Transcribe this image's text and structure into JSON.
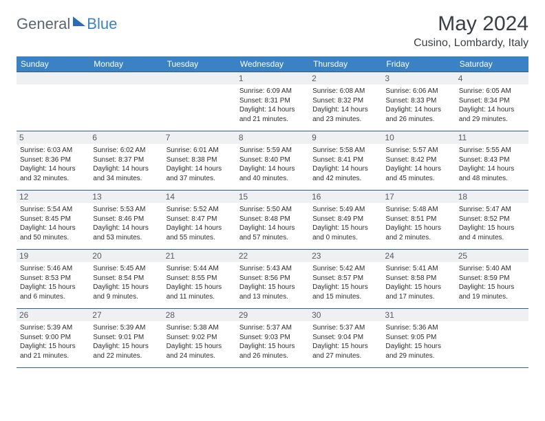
{
  "logo": {
    "general": "General",
    "blue": "Blue"
  },
  "title": "May 2024",
  "location": "Cusino, Lombardy, Italy",
  "colors": {
    "header_bg": "#3b82c4",
    "header_text": "#ffffff",
    "daynum_bg": "#eef0f2",
    "border": "#2f5d8f",
    "text": "#2d2d2d"
  },
  "day_headers": [
    "Sunday",
    "Monday",
    "Tuesday",
    "Wednesday",
    "Thursday",
    "Friday",
    "Saturday"
  ],
  "weeks": [
    [
      null,
      null,
      null,
      {
        "n": "1",
        "sr": "Sunrise: 6:09 AM",
        "ss": "Sunset: 8:31 PM",
        "d1": "Daylight: 14 hours",
        "d2": "and 21 minutes."
      },
      {
        "n": "2",
        "sr": "Sunrise: 6:08 AM",
        "ss": "Sunset: 8:32 PM",
        "d1": "Daylight: 14 hours",
        "d2": "and 23 minutes."
      },
      {
        "n": "3",
        "sr": "Sunrise: 6:06 AM",
        "ss": "Sunset: 8:33 PM",
        "d1": "Daylight: 14 hours",
        "d2": "and 26 minutes."
      },
      {
        "n": "4",
        "sr": "Sunrise: 6:05 AM",
        "ss": "Sunset: 8:34 PM",
        "d1": "Daylight: 14 hours",
        "d2": "and 29 minutes."
      }
    ],
    [
      {
        "n": "5",
        "sr": "Sunrise: 6:03 AM",
        "ss": "Sunset: 8:36 PM",
        "d1": "Daylight: 14 hours",
        "d2": "and 32 minutes."
      },
      {
        "n": "6",
        "sr": "Sunrise: 6:02 AM",
        "ss": "Sunset: 8:37 PM",
        "d1": "Daylight: 14 hours",
        "d2": "and 34 minutes."
      },
      {
        "n": "7",
        "sr": "Sunrise: 6:01 AM",
        "ss": "Sunset: 8:38 PM",
        "d1": "Daylight: 14 hours",
        "d2": "and 37 minutes."
      },
      {
        "n": "8",
        "sr": "Sunrise: 5:59 AM",
        "ss": "Sunset: 8:40 PM",
        "d1": "Daylight: 14 hours",
        "d2": "and 40 minutes."
      },
      {
        "n": "9",
        "sr": "Sunrise: 5:58 AM",
        "ss": "Sunset: 8:41 PM",
        "d1": "Daylight: 14 hours",
        "d2": "and 42 minutes."
      },
      {
        "n": "10",
        "sr": "Sunrise: 5:57 AM",
        "ss": "Sunset: 8:42 PM",
        "d1": "Daylight: 14 hours",
        "d2": "and 45 minutes."
      },
      {
        "n": "11",
        "sr": "Sunrise: 5:55 AM",
        "ss": "Sunset: 8:43 PM",
        "d1": "Daylight: 14 hours",
        "d2": "and 48 minutes."
      }
    ],
    [
      {
        "n": "12",
        "sr": "Sunrise: 5:54 AM",
        "ss": "Sunset: 8:45 PM",
        "d1": "Daylight: 14 hours",
        "d2": "and 50 minutes."
      },
      {
        "n": "13",
        "sr": "Sunrise: 5:53 AM",
        "ss": "Sunset: 8:46 PM",
        "d1": "Daylight: 14 hours",
        "d2": "and 53 minutes."
      },
      {
        "n": "14",
        "sr": "Sunrise: 5:52 AM",
        "ss": "Sunset: 8:47 PM",
        "d1": "Daylight: 14 hours",
        "d2": "and 55 minutes."
      },
      {
        "n": "15",
        "sr": "Sunrise: 5:50 AM",
        "ss": "Sunset: 8:48 PM",
        "d1": "Daylight: 14 hours",
        "d2": "and 57 minutes."
      },
      {
        "n": "16",
        "sr": "Sunrise: 5:49 AM",
        "ss": "Sunset: 8:49 PM",
        "d1": "Daylight: 15 hours",
        "d2": "and 0 minutes."
      },
      {
        "n": "17",
        "sr": "Sunrise: 5:48 AM",
        "ss": "Sunset: 8:51 PM",
        "d1": "Daylight: 15 hours",
        "d2": "and 2 minutes."
      },
      {
        "n": "18",
        "sr": "Sunrise: 5:47 AM",
        "ss": "Sunset: 8:52 PM",
        "d1": "Daylight: 15 hours",
        "d2": "and 4 minutes."
      }
    ],
    [
      {
        "n": "19",
        "sr": "Sunrise: 5:46 AM",
        "ss": "Sunset: 8:53 PM",
        "d1": "Daylight: 15 hours",
        "d2": "and 6 minutes."
      },
      {
        "n": "20",
        "sr": "Sunrise: 5:45 AM",
        "ss": "Sunset: 8:54 PM",
        "d1": "Daylight: 15 hours",
        "d2": "and 9 minutes."
      },
      {
        "n": "21",
        "sr": "Sunrise: 5:44 AM",
        "ss": "Sunset: 8:55 PM",
        "d1": "Daylight: 15 hours",
        "d2": "and 11 minutes."
      },
      {
        "n": "22",
        "sr": "Sunrise: 5:43 AM",
        "ss": "Sunset: 8:56 PM",
        "d1": "Daylight: 15 hours",
        "d2": "and 13 minutes."
      },
      {
        "n": "23",
        "sr": "Sunrise: 5:42 AM",
        "ss": "Sunset: 8:57 PM",
        "d1": "Daylight: 15 hours",
        "d2": "and 15 minutes."
      },
      {
        "n": "24",
        "sr": "Sunrise: 5:41 AM",
        "ss": "Sunset: 8:58 PM",
        "d1": "Daylight: 15 hours",
        "d2": "and 17 minutes."
      },
      {
        "n": "25",
        "sr": "Sunrise: 5:40 AM",
        "ss": "Sunset: 8:59 PM",
        "d1": "Daylight: 15 hours",
        "d2": "and 19 minutes."
      }
    ],
    [
      {
        "n": "26",
        "sr": "Sunrise: 5:39 AM",
        "ss": "Sunset: 9:00 PM",
        "d1": "Daylight: 15 hours",
        "d2": "and 21 minutes."
      },
      {
        "n": "27",
        "sr": "Sunrise: 5:39 AM",
        "ss": "Sunset: 9:01 PM",
        "d1": "Daylight: 15 hours",
        "d2": "and 22 minutes."
      },
      {
        "n": "28",
        "sr": "Sunrise: 5:38 AM",
        "ss": "Sunset: 9:02 PM",
        "d1": "Daylight: 15 hours",
        "d2": "and 24 minutes."
      },
      {
        "n": "29",
        "sr": "Sunrise: 5:37 AM",
        "ss": "Sunset: 9:03 PM",
        "d1": "Daylight: 15 hours",
        "d2": "and 26 minutes."
      },
      {
        "n": "30",
        "sr": "Sunrise: 5:37 AM",
        "ss": "Sunset: 9:04 PM",
        "d1": "Daylight: 15 hours",
        "d2": "and 27 minutes."
      },
      {
        "n": "31",
        "sr": "Sunrise: 5:36 AM",
        "ss": "Sunset: 9:05 PM",
        "d1": "Daylight: 15 hours",
        "d2": "and 29 minutes."
      },
      null
    ]
  ]
}
